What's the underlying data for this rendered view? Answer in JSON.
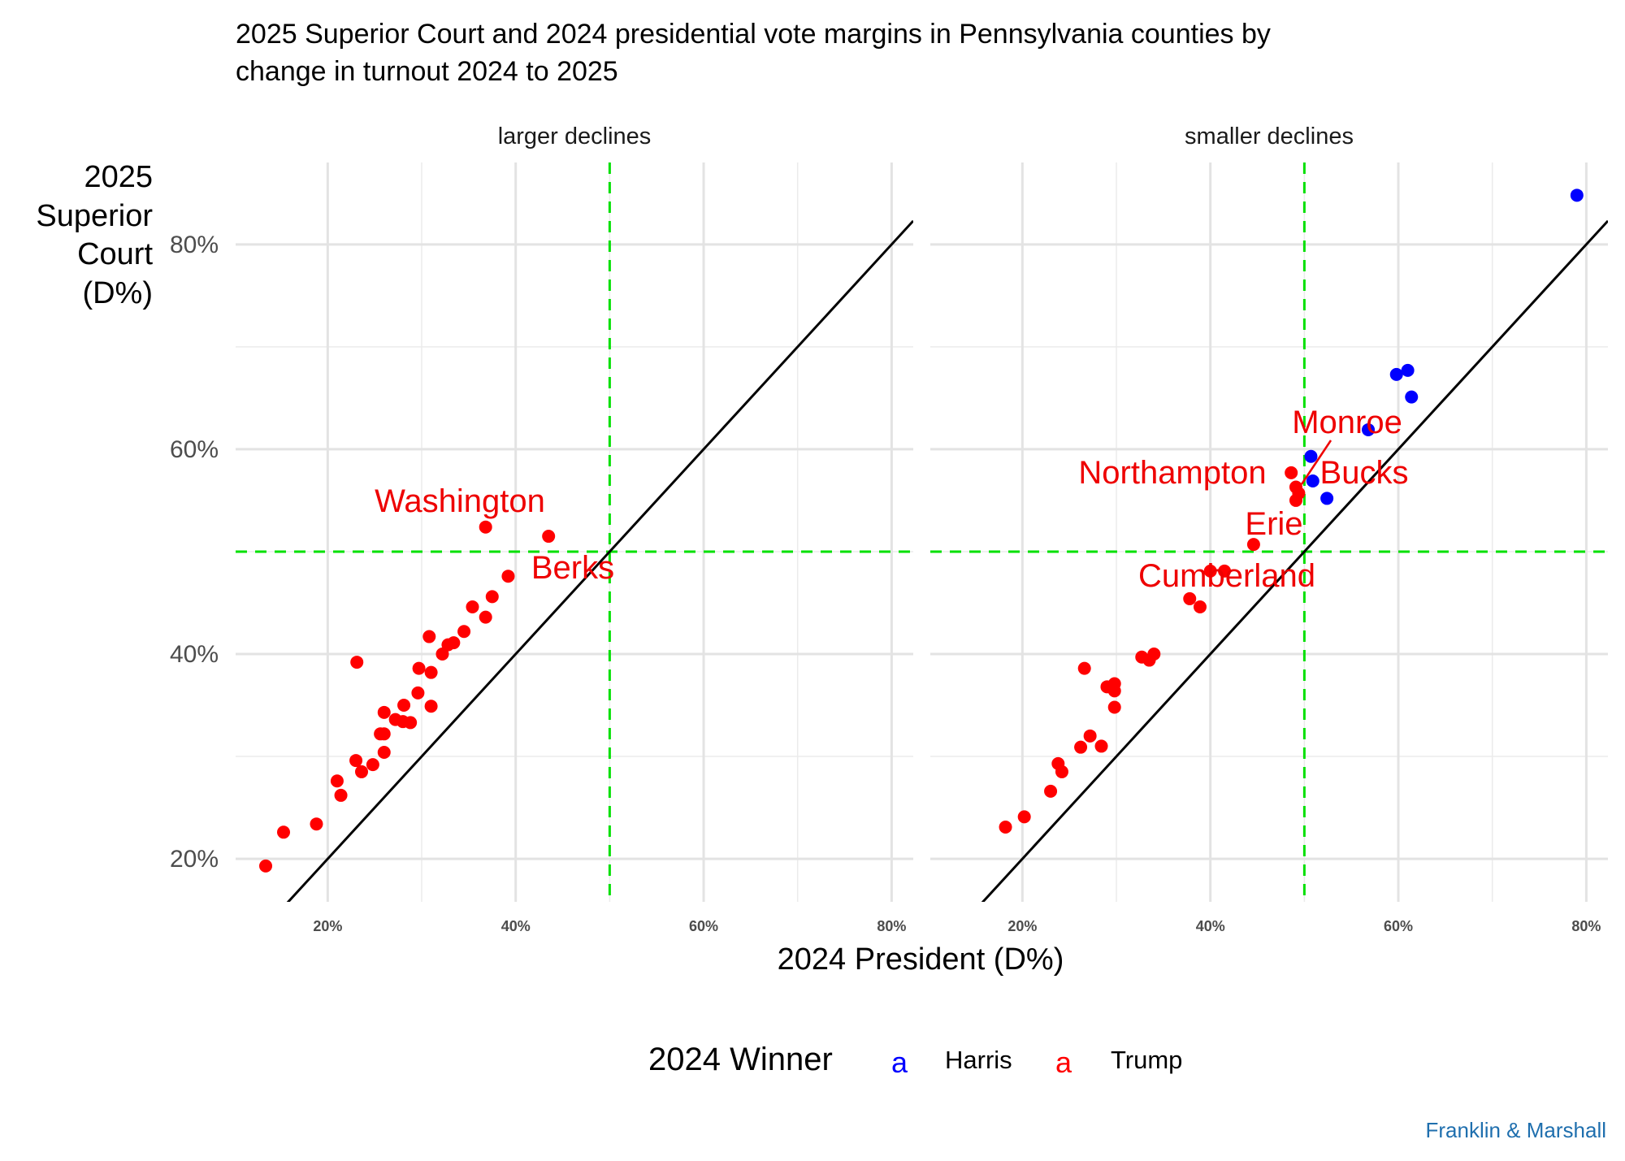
{
  "chart_data": {
    "type": "scatter",
    "title": "2025 Superior Court and 2024 presidential vote margins in Pennsylvania counties by change in turnout 2024 to 2025",
    "title_lines": [
      "2025 Superior Court and 2024 presidential vote margins in Pennsylvania counties by",
      "change in turnout 2024 to 2025"
    ],
    "xlabel": "2024 President (D%)",
    "ylabel_lines": [
      "2025",
      "Superior",
      "Court",
      "(D%)"
    ],
    "xlim": [
      10.2,
      82.3
    ],
    "ylim": [
      15.8,
      88
    ],
    "x_ticks": [
      20,
      40,
      60,
      80
    ],
    "x_tick_labels": [
      "20%",
      "40%",
      "60%",
      "80%"
    ],
    "y_ticks": [
      20,
      40,
      60,
      80
    ],
    "y_tick_labels": [
      "20%",
      "40%",
      "60%",
      "80%"
    ],
    "grid": true,
    "reference_lines": {
      "vertical": 50,
      "horizontal": 50,
      "diagonal": "y = x"
    },
    "colors": {
      "Harris": "#0000ff",
      "Trump": "#ff0000",
      "reference": "#00e000",
      "diagonal": "#000000"
    },
    "legend": {
      "title": "2024 Winner",
      "position": "bottom",
      "entries": [
        {
          "name": "Harris",
          "color": "#0000ff"
        },
        {
          "name": "Trump",
          "color": "#ff0000"
        }
      ],
      "key_glyph": "a"
    },
    "caption": "Franklin & Marshall",
    "caption_color": "#1f6fae",
    "panels": [
      {
        "name": "larger declines",
        "points": [
          {
            "x": 13.4,
            "y": 19.3,
            "winner": "Trump"
          },
          {
            "x": 15.3,
            "y": 22.6,
            "winner": "Trump"
          },
          {
            "x": 18.8,
            "y": 23.4,
            "winner": "Trump"
          },
          {
            "x": 21.0,
            "y": 27.6,
            "winner": "Trump"
          },
          {
            "x": 21.4,
            "y": 26.2,
            "winner": "Trump"
          },
          {
            "x": 23.1,
            "y": 39.2,
            "winner": "Trump"
          },
          {
            "x": 23.0,
            "y": 29.6,
            "winner": "Trump"
          },
          {
            "x": 23.6,
            "y": 28.5,
            "winner": "Trump"
          },
          {
            "x": 24.8,
            "y": 29.2,
            "winner": "Trump"
          },
          {
            "x": 25.6,
            "y": 32.2,
            "winner": "Trump"
          },
          {
            "x": 26.0,
            "y": 32.2,
            "winner": "Trump"
          },
          {
            "x": 26.0,
            "y": 30.4,
            "winner": "Trump"
          },
          {
            "x": 26.0,
            "y": 34.3,
            "winner": "Trump"
          },
          {
            "x": 27.2,
            "y": 33.6,
            "winner": "Trump"
          },
          {
            "x": 28.1,
            "y": 35.0,
            "winner": "Trump"
          },
          {
            "x": 28.0,
            "y": 33.4,
            "winner": "Trump"
          },
          {
            "x": 28.8,
            "y": 33.3,
            "winner": "Trump"
          },
          {
            "x": 29.6,
            "y": 36.2,
            "winner": "Trump"
          },
          {
            "x": 29.7,
            "y": 38.6,
            "winner": "Trump"
          },
          {
            "x": 31.0,
            "y": 38.2,
            "winner": "Trump"
          },
          {
            "x": 31.0,
            "y": 34.9,
            "winner": "Trump"
          },
          {
            "x": 30.8,
            "y": 41.7,
            "winner": "Trump"
          },
          {
            "x": 32.2,
            "y": 40.0,
            "winner": "Trump"
          },
          {
            "x": 32.8,
            "y": 40.9,
            "winner": "Trump"
          },
          {
            "x": 33.4,
            "y": 41.1,
            "winner": "Trump"
          },
          {
            "x": 34.5,
            "y": 42.2,
            "winner": "Trump"
          },
          {
            "x": 35.4,
            "y": 44.6,
            "winner": "Trump"
          },
          {
            "x": 36.8,
            "y": 43.6,
            "winner": "Trump"
          },
          {
            "x": 37.5,
            "y": 45.6,
            "winner": "Trump"
          },
          {
            "x": 39.2,
            "y": 47.6,
            "winner": "Trump"
          },
          {
            "x": 36.8,
            "y": 52.4,
            "winner": "Trump"
          },
          {
            "x": 43.5,
            "y": 51.5,
            "winner": "Trump"
          }
        ],
        "annotations": [
          "Washington",
          "Berks"
        ]
      },
      {
        "name": "smaller declines",
        "points": [
          {
            "x": 18.2,
            "y": 23.1,
            "winner": "Trump"
          },
          {
            "x": 20.2,
            "y": 24.1,
            "winner": "Trump"
          },
          {
            "x": 23.0,
            "y": 26.6,
            "winner": "Trump"
          },
          {
            "x": 23.8,
            "y": 29.3,
            "winner": "Trump"
          },
          {
            "x": 24.2,
            "y": 28.5,
            "winner": "Trump"
          },
          {
            "x": 26.2,
            "y": 30.9,
            "winner": "Trump"
          },
          {
            "x": 26.6,
            "y": 38.6,
            "winner": "Trump"
          },
          {
            "x": 27.2,
            "y": 32.0,
            "winner": "Trump"
          },
          {
            "x": 28.4,
            "y": 31.0,
            "winner": "Trump"
          },
          {
            "x": 29.0,
            "y": 36.8,
            "winner": "Trump"
          },
          {
            "x": 29.8,
            "y": 37.1,
            "winner": "Trump"
          },
          {
            "x": 29.8,
            "y": 36.4,
            "winner": "Trump"
          },
          {
            "x": 29.8,
            "y": 34.8,
            "winner": "Trump"
          },
          {
            "x": 32.7,
            "y": 39.7,
            "winner": "Trump"
          },
          {
            "x": 33.5,
            "y": 39.4,
            "winner": "Trump"
          },
          {
            "x": 34.0,
            "y": 40.0,
            "winner": "Trump"
          },
          {
            "x": 37.8,
            "y": 45.4,
            "winner": "Trump"
          },
          {
            "x": 38.9,
            "y": 44.6,
            "winner": "Trump"
          },
          {
            "x": 40.0,
            "y": 48.1,
            "winner": "Trump"
          },
          {
            "x": 41.5,
            "y": 48.1,
            "winner": "Trump"
          },
          {
            "x": 44.6,
            "y": 50.7,
            "winner": "Trump"
          },
          {
            "x": 48.6,
            "y": 57.7,
            "winner": "Trump"
          },
          {
            "x": 49.1,
            "y": 56.3,
            "winner": "Trump"
          },
          {
            "x": 49.4,
            "y": 55.7,
            "winner": "Trump"
          },
          {
            "x": 49.1,
            "y": 55.0,
            "winner": "Trump"
          },
          {
            "x": 50.7,
            "y": 59.3,
            "winner": "Harris"
          },
          {
            "x": 50.9,
            "y": 56.9,
            "winner": "Harris"
          },
          {
            "x": 52.4,
            "y": 55.2,
            "winner": "Harris"
          },
          {
            "x": 56.8,
            "y": 61.9,
            "winner": "Harris"
          },
          {
            "x": 59.8,
            "y": 67.3,
            "winner": "Harris"
          },
          {
            "x": 61.0,
            "y": 67.7,
            "winner": "Harris"
          },
          {
            "x": 61.4,
            "y": 65.1,
            "winner": "Harris"
          },
          {
            "x": 79.0,
            "y": 84.8,
            "winner": "Harris"
          }
        ],
        "annotations": [
          "Monroe",
          "Northampton",
          "Bucks",
          "Erie",
          "Cumberland"
        ]
      }
    ]
  }
}
